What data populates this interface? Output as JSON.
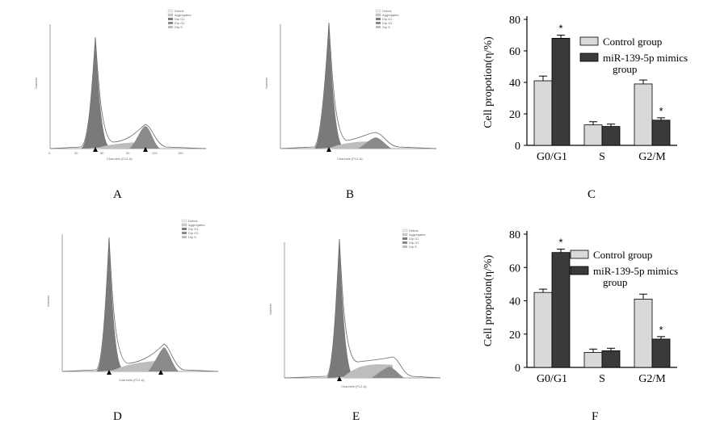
{
  "panels": {
    "A": {
      "label": "A"
    },
    "B": {
      "label": "B"
    },
    "C": {
      "label": "C"
    },
    "D": {
      "label": "D"
    },
    "E": {
      "label": "E"
    },
    "F": {
      "label": "F"
    }
  },
  "histograms": {
    "xlabel": "Channels (FL2-A)",
    "ylabel": "Number",
    "legend": [
      "Debris",
      "Aggregates",
      "Dip G1",
      "Dip G2",
      "Dip S"
    ],
    "xticks": [
      "0",
      "30",
      "60",
      "90",
      "120",
      "150"
    ],
    "colors": {
      "g1": "#7a7a7a",
      "s": "#bdbdbd",
      "g2": "#8a8a8a",
      "outline": "#666666"
    }
  },
  "chart_data": [
    {
      "id": "C",
      "type": "bar",
      "ylabel": "Cell propotion(η/%)",
      "ylim": [
        0,
        80
      ],
      "yticks": [
        0,
        20,
        40,
        60,
        80
      ],
      "categories": [
        "G0/G1",
        "S",
        "G2/M"
      ],
      "series": [
        {
          "name": "Control group",
          "values": [
            41,
            13,
            39
          ],
          "errors": [
            3,
            2,
            2.5
          ],
          "color": "#d9d9d9"
        },
        {
          "name": "miR-139-5p mimics group",
          "values": [
            68,
            12,
            16
          ],
          "errors": [
            2,
            1.5,
            1.5
          ],
          "color": "#3a3a3a"
        }
      ],
      "significance": [
        "*",
        "",
        "*"
      ]
    },
    {
      "id": "F",
      "type": "bar",
      "ylabel": "Cell propotion(η/%)",
      "ylim": [
        0,
        80
      ],
      "yticks": [
        0,
        20,
        40,
        60,
        80
      ],
      "categories": [
        "G0/G1",
        "S",
        "G2/M"
      ],
      "series": [
        {
          "name": "Control group",
          "values": [
            45,
            9,
            41
          ],
          "errors": [
            2,
            2,
            3
          ],
          "color": "#d9d9d9"
        },
        {
          "name": "miR-139-5p mimics group",
          "values": [
            69,
            10,
            17
          ],
          "errors": [
            2,
            1.5,
            1.5
          ],
          "color": "#3a3a3a"
        }
      ],
      "significance": [
        "*",
        "",
        "*"
      ]
    }
  ]
}
